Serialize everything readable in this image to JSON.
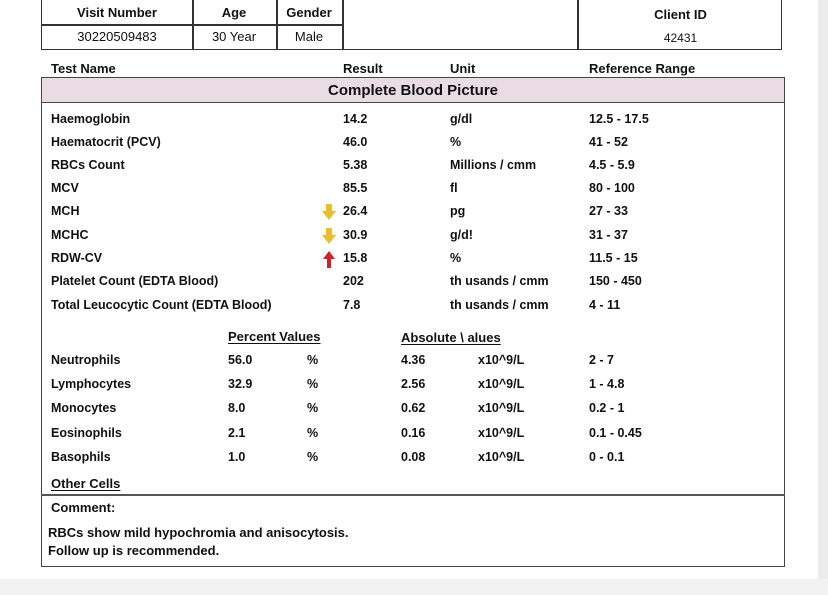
{
  "header": {
    "visit_number_label": "Visit Number",
    "visit_number_value": "30220509483",
    "age_label": "Age",
    "age_value": "30 Year",
    "gender_label": "Gender",
    "gender_value": "Male",
    "client_id_label": "Client ID",
    "client_id_value": "42431"
  },
  "columns": {
    "test_name": "Test Name",
    "result": "Result",
    "unit": "Unit",
    "reference_range": "Reference Range"
  },
  "section_title": "Complete Blood Picture",
  "tests": [
    {
      "name": "Haemoglobin",
      "result": "14.2",
      "unit": "g/dl",
      "range": "12.5 - 17.5",
      "flag": ""
    },
    {
      "name": "Haematocrit (PCV)",
      "result": "46.0",
      "unit": "%",
      "range": "41 - 52",
      "flag": ""
    },
    {
      "name": "RBCs Count",
      "result": "5.38",
      "unit": "Millions / cmm",
      "range": "4.5 - 5.9",
      "flag": ""
    },
    {
      "name": "MCV",
      "result": "85.5",
      "unit": "fl",
      "range": "80 - 100",
      "flag": ""
    },
    {
      "name": "MCH",
      "result": "26.4",
      "unit": "pg",
      "range": "27 - 33",
      "flag": "low"
    },
    {
      "name": "MCHC",
      "result": "30.9",
      "unit": "g/d!",
      "range": "31 - 37",
      "flag": "low"
    },
    {
      "name": "RDW-CV",
      "result": "15.8",
      "unit": "%",
      "range": "11.5 - 15",
      "flag": "high"
    },
    {
      "name": "Platelet Count (EDTA Blood)",
      "result": "202",
      "unit": "th usands / cmm",
      "range": "150 - 450",
      "flag": ""
    },
    {
      "name": "Total Leucocytic Count (EDTA Blood)",
      "result": "7.8",
      "unit": "th usands / cmm",
      "range": "4 - 11",
      "flag": ""
    }
  ],
  "differential": {
    "percent_header": "Percent Values",
    "absolute_header": "Absolute \\ alues",
    "rows": [
      {
        "name": "Neutrophils",
        "percent": "56.0",
        "percent_unit": "%",
        "absolute": "4.36",
        "absolute_unit": "x10^9/L",
        "range": "2 - 7"
      },
      {
        "name": "Lymphocytes",
        "percent": "32.9",
        "percent_unit": "%",
        "absolute": "2.56",
        "absolute_unit": "x10^9/L",
        "range": "1 - 4.8"
      },
      {
        "name": "Monocytes",
        "percent": "8.0",
        "percent_unit": "%",
        "absolute": "0.62",
        "absolute_unit": "x10^9/L",
        "range": "0.2 - 1"
      },
      {
        "name": "Eosinophils",
        "percent": "2.1",
        "percent_unit": "%",
        "absolute": "0.16",
        "absolute_unit": "x10^9/L",
        "range": "0.1 - 0.45"
      },
      {
        "name": "Basophils",
        "percent": "1.0",
        "percent_unit": "%",
        "absolute": "0.08",
        "absolute_unit": "x10^9/L",
        "range": "0 - 0.1"
      }
    ]
  },
  "other_cells_label": "Other Cells",
  "comment": {
    "label": "Comment:",
    "line1": "RBCs show mild hypochromia and anisocytosis.",
    "line2": "Follow up is recommended."
  },
  "colors": {
    "section_band": "#e9dde3",
    "low_arrow": "#e8c02a",
    "high_arrow": "#d0202a"
  }
}
